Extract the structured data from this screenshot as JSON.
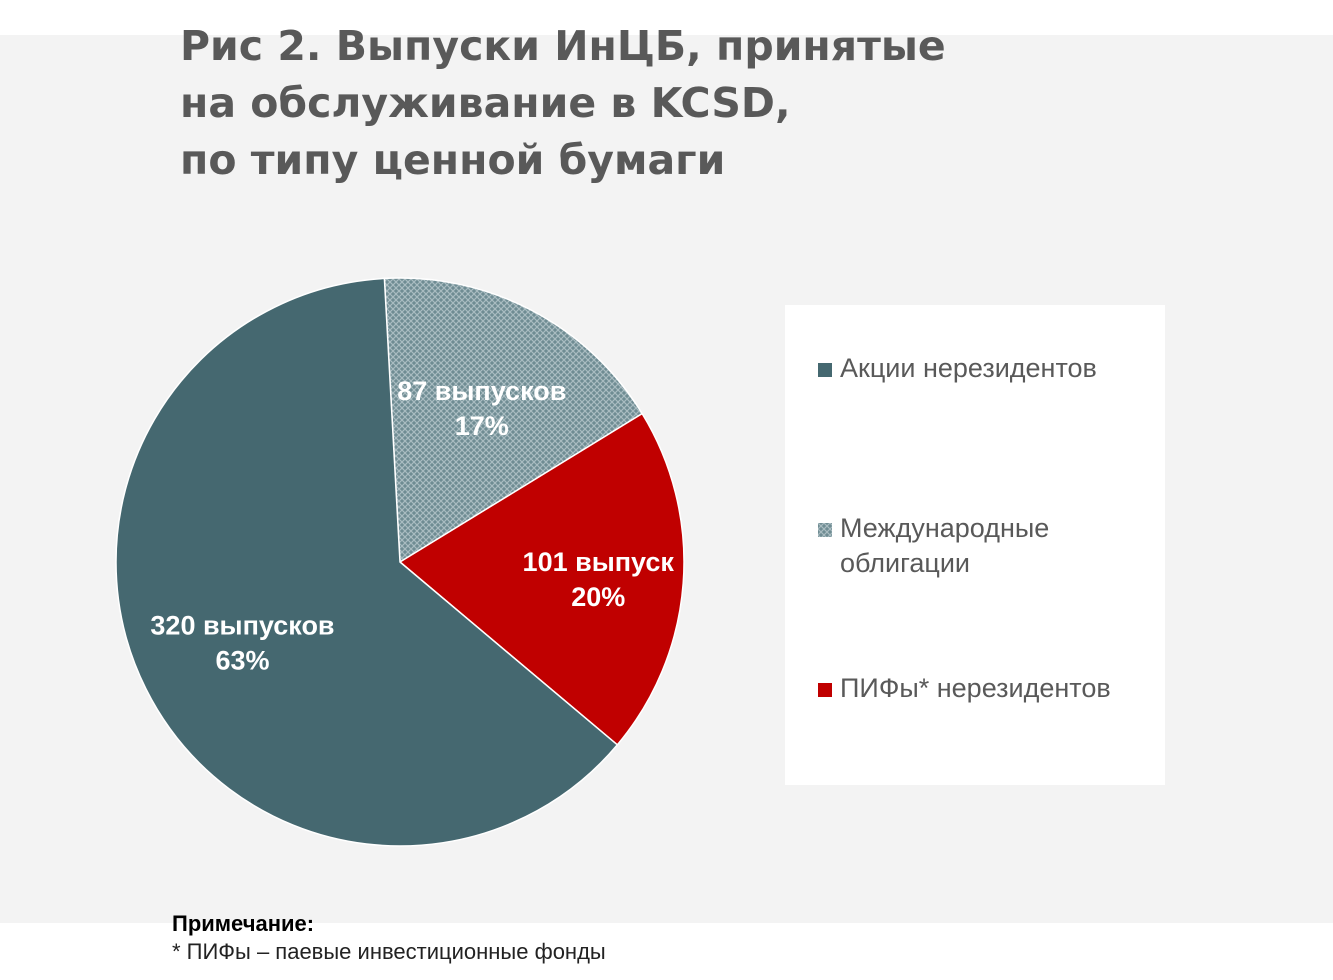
{
  "title_lines": [
    "Рис 2. Выпуски ИнЦБ, принятые",
    "на обслуживание в KCSD,",
    "по типу ценной бумаги"
  ],
  "chart_data": {
    "type": "pie",
    "title": "Рис 2. Выпуски ИнЦБ, принятые на обслуживание в KCSD, по типу ценной бумаги",
    "categories": [
      "Акции нерезидентов",
      "Международные облигации",
      "ПИФы* нерезидентов"
    ],
    "values": [
      320,
      87,
      101
    ],
    "percents": [
      "63%",
      "17%",
      "20%"
    ],
    "data_labels": [
      "320 выпусков",
      "87 выпусков",
      "101 выпуск"
    ],
    "colors": [
      "#456870",
      "#7f9aa1",
      "#c00000"
    ],
    "legend_position": "right"
  },
  "legend": {
    "items": [
      {
        "label": "Акции нерезидентов",
        "color": "#456870",
        "pattern": "solid"
      },
      {
        "label": "Международные\nоблигации",
        "color": "#456870",
        "pattern": "crosshatch"
      },
      {
        "label": "ПИФы* нерезидентов",
        "color": "#c00000",
        "pattern": "solid"
      }
    ]
  },
  "note": {
    "title": "Примечание:",
    "text": "* ПИФы – паевые инвестиционные фонды"
  }
}
